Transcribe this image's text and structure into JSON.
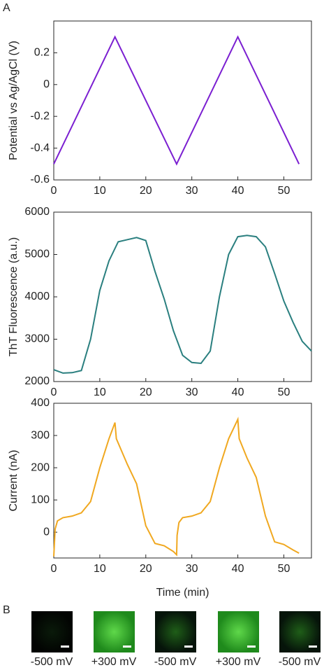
{
  "panels": {
    "a": "A",
    "b": "B"
  },
  "chart_data": [
    {
      "type": "line",
      "y_label": "Potential vs Ag/AgCl (V)",
      "color": "#7b1fd1",
      "x": [
        0,
        13.3,
        26.7,
        40,
        53.3
      ],
      "values": [
        -0.5,
        0.3,
        -0.5,
        0.3,
        -0.5
      ],
      "xlim": [
        0,
        56
      ],
      "xticks": [
        0,
        10,
        20,
        30,
        40,
        50
      ],
      "ylim": [
        -0.6,
        0.4
      ],
      "yticks": [
        -0.6,
        -0.4,
        -0.2,
        0,
        0.2
      ]
    },
    {
      "type": "line",
      "y_label": "ThT Fluorescence (a.u.)",
      "color": "#2a7f7f",
      "x": [
        0,
        2,
        4,
        6,
        8,
        10,
        12,
        14,
        16,
        18,
        20,
        22,
        24,
        26,
        28,
        30,
        32,
        34,
        36,
        38,
        40,
        42,
        44,
        46,
        48,
        50,
        52,
        54,
        56
      ],
      "values": [
        2280,
        2200,
        2210,
        2260,
        3000,
        4150,
        4850,
        5300,
        5350,
        5400,
        5330,
        4600,
        3950,
        3200,
        2620,
        2450,
        2430,
        2720,
        4000,
        5000,
        5420,
        5450,
        5420,
        5180,
        4550,
        3900,
        3400,
        2950,
        2720
      ],
      "xlim": [
        0,
        56
      ],
      "xticks": [
        0,
        10,
        20,
        30,
        40,
        50
      ],
      "ylim": [
        2000,
        6000
      ],
      "yticks": [
        2000,
        3000,
        4000,
        5000,
        6000
      ]
    },
    {
      "type": "line",
      "y_label": "Current (nA)",
      "x_label": "Time (min)",
      "color": "#f0a820",
      "x": [
        0,
        0.3,
        0.8,
        2,
        4,
        6,
        8,
        10,
        12,
        13.3,
        13.6,
        16,
        18,
        20,
        22,
        24,
        26,
        26.7,
        26.8,
        27.2,
        28,
        30,
        32,
        34,
        36,
        38,
        40,
        40.3,
        42,
        44,
        46,
        48,
        50,
        52,
        53.3
      ],
      "values": [
        -75,
        10,
        35,
        45,
        50,
        60,
        95,
        200,
        290,
        340,
        290,
        210,
        150,
        20,
        -35,
        -42,
        -60,
        -70,
        -10,
        30,
        45,
        50,
        60,
        95,
        200,
        290,
        350,
        290,
        230,
        170,
        50,
        -30,
        -38,
        -55,
        -65
      ],
      "xlim": [
        0,
        56
      ],
      "xticks": [
        0,
        10,
        20,
        30,
        40,
        50
      ],
      "ylim": [
        -80,
        400
      ],
      "yticks": [
        0,
        100,
        200,
        300,
        400
      ]
    }
  ],
  "images": [
    {
      "caption": "-500 mV"
    },
    {
      "caption": "+300 mV"
    },
    {
      "caption": "-500 mV"
    },
    {
      "caption": "+300 mV"
    },
    {
      "caption": "-500 mV"
    }
  ]
}
